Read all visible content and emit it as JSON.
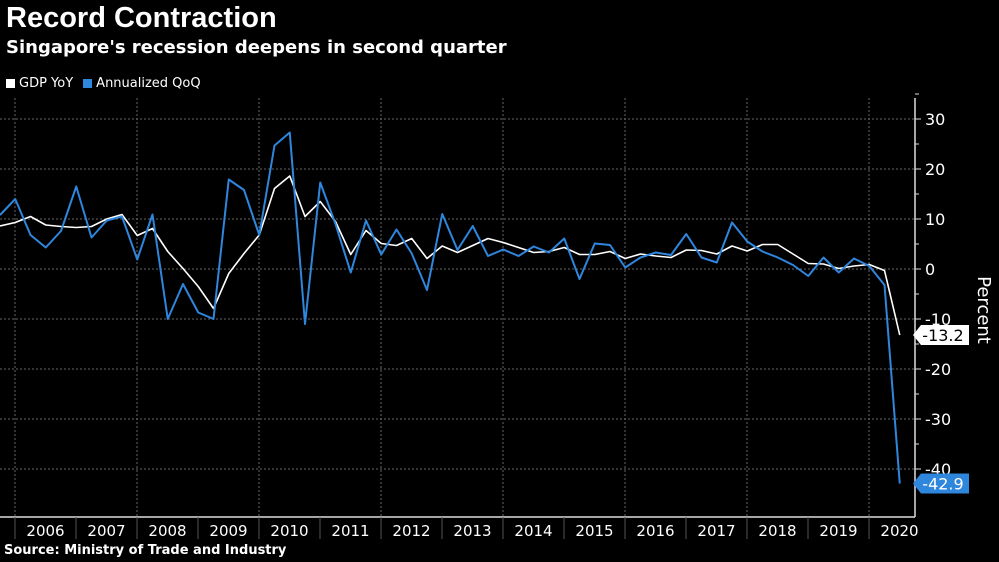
{
  "chart_data": {
    "type": "line",
    "title": "Record Contraction",
    "subtitle": "Singapore's recession deepens in second quarter",
    "source": "Source: Ministry of Trade and Industry",
    "ylabel": "Percent",
    "xlabel": "",
    "ylim": [
      -45,
      35
    ],
    "yticks": [
      30,
      20,
      10,
      0,
      -10,
      -20,
      -30,
      -40
    ],
    "xtick_labels": [
      "2006",
      "2007",
      "2008",
      "2009",
      "2010",
      "2011",
      "2012",
      "2013",
      "2014",
      "2015",
      "2016",
      "2017",
      "2018",
      "2019",
      "2020"
    ],
    "x_start": "2005-Q3",
    "x_end": "2020-Q2",
    "x_frequency": "quarterly",
    "grid": true,
    "legend_position": "top-left",
    "series": [
      {
        "name": "GDP YoY",
        "color": "#ffffff",
        "last_value_label": "-13.2",
        "values": [
          8.6,
          9.3,
          10.5,
          8.8,
          8.5,
          8.3,
          8.5,
          10.0,
          10.9,
          6.7,
          8.1,
          3.5,
          0.1,
          -3.5,
          -7.9,
          -0.9,
          3.1,
          6.8,
          16.1,
          18.6,
          10.5,
          13.5,
          9.5,
          2.9,
          7.7,
          5.1,
          4.7,
          6.1,
          2.1,
          4.6,
          3.3,
          4.7,
          6.1,
          5.3,
          4.3,
          3.3,
          3.5,
          4.3,
          2.9,
          2.9,
          3.5,
          2.1,
          3.0,
          2.6,
          2.3,
          3.8,
          3.7,
          3.0,
          4.6,
          3.6,
          4.9,
          4.9,
          3.0,
          1.1,
          1.0,
          0.1,
          0.6,
          0.9,
          -0.3,
          -13.2
        ]
      },
      {
        "name": "Annualized QoQ",
        "color": "#2f86dd",
        "last_value_label": "-42.9",
        "values": [
          10.8,
          14.0,
          6.8,
          4.3,
          7.6,
          16.5,
          6.3,
          9.7,
          10.5,
          1.9,
          10.9,
          -10.0,
          -3.0,
          -8.7,
          -10.0,
          17.9,
          15.8,
          6.8,
          24.7,
          27.3,
          -11.0,
          17.3,
          9.0,
          -0.7,
          9.7,
          2.9,
          7.9,
          3.1,
          -4.2,
          11.0,
          3.8,
          8.6,
          2.6,
          3.9,
          2.6,
          4.5,
          3.3,
          6.1,
          -2.0,
          5.1,
          4.8,
          0.3,
          2.3,
          3.3,
          2.8,
          7.0,
          2.3,
          1.3,
          9.3,
          5.5,
          3.5,
          2.3,
          0.8,
          -1.4,
          2.3,
          -0.7,
          2.1,
          0.6,
          -3.2,
          -42.9
        ]
      }
    ]
  }
}
